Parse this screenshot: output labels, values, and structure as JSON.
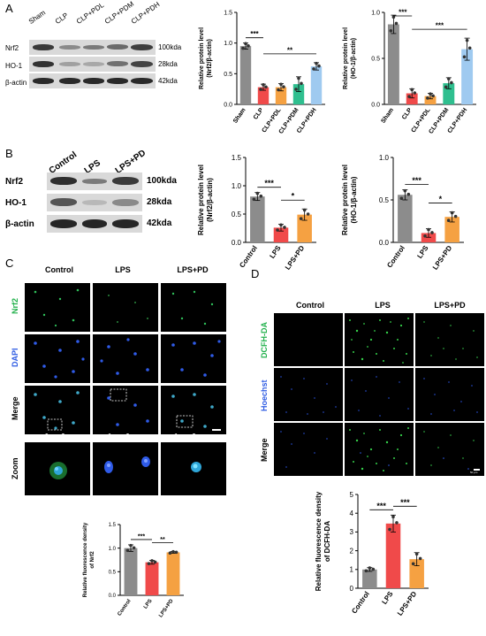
{
  "panels": {
    "A": {
      "letter": "A",
      "wb_lanes": [
        "Sham",
        "CLP",
        "CLP+PDL",
        "CLP+PDM",
        "CLP+PDH"
      ],
      "wb_rows": [
        {
          "protein": "Nrf2",
          "kda": "100kda"
        },
        {
          "protein": "HO-1",
          "kda": "28kda"
        },
        {
          "protein": "β-actin",
          "kda": "42kda"
        }
      ]
    },
    "B": {
      "letter": "B",
      "wb_lanes": [
        "Control",
        "LPS",
        "LPS+PD"
      ],
      "wb_rows": [
        {
          "protein": "Nrf2",
          "kda": "100kda"
        },
        {
          "protein": "HO-1",
          "kda": "28kda"
        },
        {
          "protein": "β-actin",
          "kda": "42kda"
        }
      ]
    },
    "C": {
      "letter": "C",
      "columns": [
        "Control",
        "LPS",
        "LPS+PD"
      ],
      "rows": [
        "Nrf2",
        "DAPI",
        "Merge",
        "Zoom"
      ],
      "row_colors": {
        "Nrf2": "#22b14c",
        "DAPI": "#2d5be3",
        "Merge": "#000000",
        "Zoom": "#000000"
      }
    },
    "D": {
      "letter": "D",
      "columns": [
        "Control",
        "LPS",
        "LPS+PD"
      ],
      "rows": [
        "DCFH-DA",
        "Hoechst",
        "Merge"
      ],
      "row_colors": {
        "DCFH-DA": "#22b14c",
        "Hoechst": "#2d5be3",
        "Merge": "#000000"
      },
      "scale_label": "50 μm"
    }
  },
  "chart_data": [
    {
      "id": "A-nrf2",
      "type": "bar",
      "categories": [
        "Sham",
        "CLP",
        "CLP+PDL",
        "CLP+PDM",
        "CLP+PDH"
      ],
      "values": [
        0.95,
        0.28,
        0.28,
        0.33,
        0.62
      ],
      "errors": [
        0.05,
        0.05,
        0.06,
        0.12,
        0.06
      ],
      "colors": [
        "#8c8c8c",
        "#f04a4a",
        "#f5a142",
        "#2fbf8f",
        "#9fcaf0"
      ],
      "ylabel": "Relative protein level\n(Nrf2/β-actin)",
      "ylim": [
        0,
        1.5
      ],
      "yticks": [
        0.0,
        0.5,
        1.0,
        1.5
      ],
      "annotations": [
        {
          "from": 0,
          "to": 1,
          "text": "***"
        },
        {
          "from": 1,
          "to": 4,
          "text": "**"
        }
      ]
    },
    {
      "id": "A-ho1",
      "type": "bar",
      "categories": [
        "Sham",
        "CLP",
        "CLP+PDL",
        "CLP+PDM",
        "CLP+PDH"
      ],
      "values": [
        0.87,
        0.12,
        0.09,
        0.23,
        0.6
      ],
      "errors": [
        0.1,
        0.05,
        0.03,
        0.06,
        0.12
      ],
      "colors": [
        "#8c8c8c",
        "#f04a4a",
        "#f5a142",
        "#2fbf8f",
        "#9fcaf0"
      ],
      "ylabel": "Relative protein level\n(HO-1/β-actin)",
      "ylim": [
        0,
        1.0
      ],
      "yticks": [
        0.0,
        0.5,
        1.0
      ],
      "annotations": [
        {
          "from": 0,
          "to": 1,
          "text": "***"
        },
        {
          "from": 1,
          "to": 4,
          "text": "***"
        }
      ]
    },
    {
      "id": "B-nrf2",
      "type": "bar",
      "categories": [
        "Control",
        "LPS",
        "LPS+PD"
      ],
      "values": [
        0.81,
        0.26,
        0.49
      ],
      "errors": [
        0.07,
        0.06,
        0.1
      ],
      "colors": [
        "#8c8c8c",
        "#f04a4a",
        "#f5a142"
      ],
      "ylabel": "Relative protein level\n(Nrf2/β-actin)",
      "ylim": [
        0,
        1.5
      ],
      "yticks": [
        0.0,
        0.5,
        1.0,
        1.5
      ],
      "annotations": [
        {
          "from": 0,
          "to": 1,
          "text": "***"
        },
        {
          "from": 1,
          "to": 2,
          "text": "*"
        }
      ]
    },
    {
      "id": "B-ho1",
      "type": "bar",
      "categories": [
        "Control",
        "LPS",
        "LPS+PD"
      ],
      "values": [
        0.56,
        0.11,
        0.3
      ],
      "errors": [
        0.06,
        0.05,
        0.06
      ],
      "colors": [
        "#8c8c8c",
        "#f04a4a",
        "#f5a142"
      ],
      "ylabel": "Relative protein level\n(HO-1/β-actin)",
      "ylim": [
        0,
        1.0
      ],
      "yticks": [
        0.0,
        0.5,
        1.0
      ],
      "annotations": [
        {
          "from": 0,
          "to": 1,
          "text": "***"
        },
        {
          "from": 1,
          "to": 2,
          "text": "*"
        }
      ]
    },
    {
      "id": "C-nrf2",
      "type": "bar",
      "categories": [
        "Control",
        "LPS",
        "LPS+PD"
      ],
      "values": [
        1.0,
        0.7,
        0.91
      ],
      "errors": [
        0.07,
        0.04,
        0.02
      ],
      "colors": [
        "#8c8c8c",
        "#f04a4a",
        "#f5a142"
      ],
      "ylabel": "Relative fluorescence density\nof Nrf2",
      "ylim": [
        0,
        1.5
      ],
      "yticks": [
        0.0,
        0.5,
        1.0,
        1.5
      ],
      "annotations": [
        {
          "from": 0,
          "to": 1,
          "text": "***"
        },
        {
          "from": 1,
          "to": 2,
          "text": "**"
        }
      ]
    },
    {
      "id": "D-dcfh",
      "type": "bar",
      "categories": [
        "Control",
        "LPS",
        "LPS+PD"
      ],
      "values": [
        1.0,
        3.45,
        1.55
      ],
      "errors": [
        0.1,
        0.45,
        0.35
      ],
      "colors": [
        "#8c8c8c",
        "#f04a4a",
        "#f5a142"
      ],
      "ylabel": "Relative fluorescence density\nof DCFH-DA",
      "ylim": [
        0,
        5
      ],
      "yticks": [
        0,
        1,
        2,
        3,
        4,
        5
      ],
      "annotations": [
        {
          "from": 0,
          "to": 1,
          "text": "***"
        },
        {
          "from": 1,
          "to": 2,
          "text": "***"
        }
      ]
    }
  ]
}
